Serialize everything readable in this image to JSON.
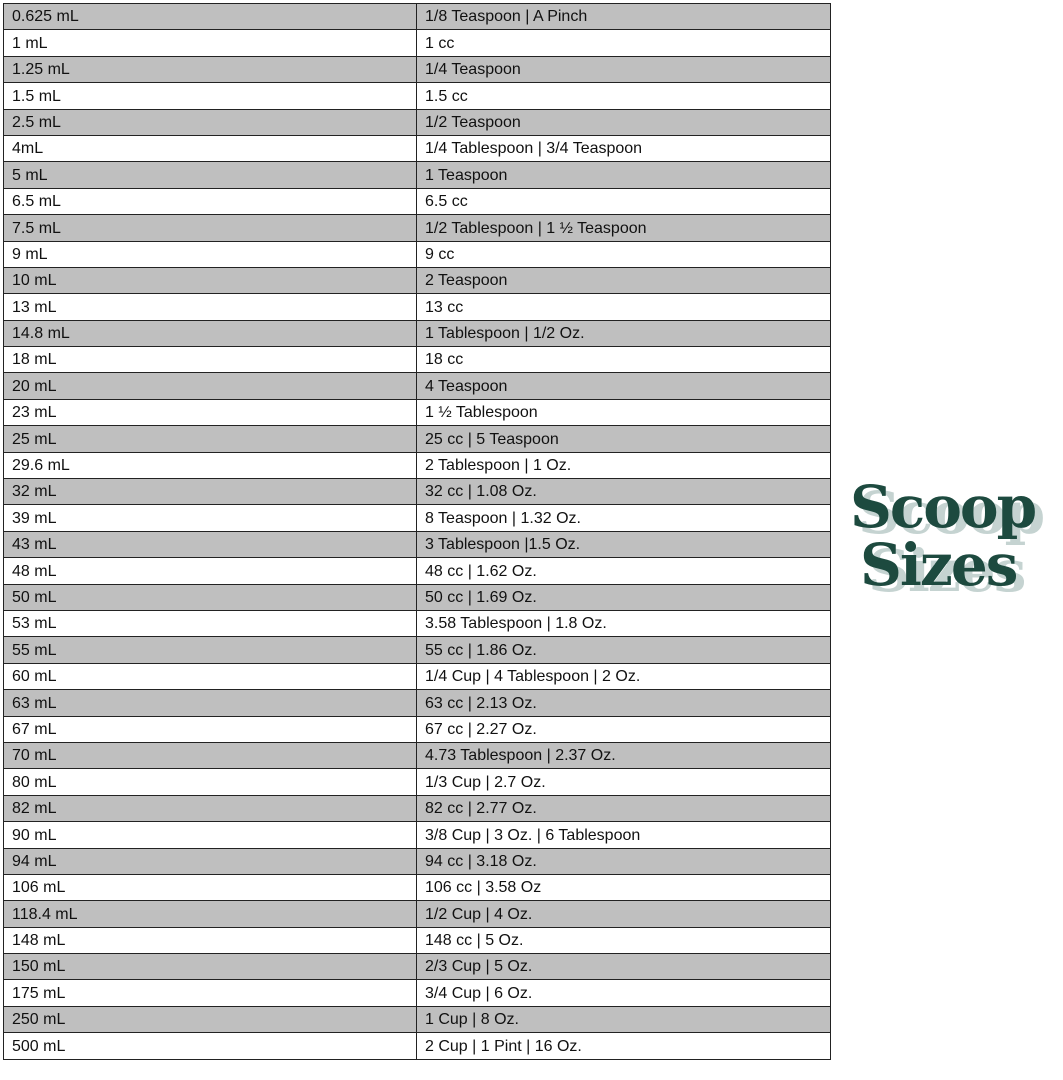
{
  "rows": [
    [
      "0.625 mL",
      "1/8 Teaspoon | A Pinch"
    ],
    [
      "1 mL",
      "1 cc"
    ],
    [
      "1.25 mL",
      "1/4 Teaspoon"
    ],
    [
      "1.5 mL",
      "1.5 cc"
    ],
    [
      "2.5 mL",
      "1/2 Teaspoon"
    ],
    [
      "4mL",
      "1/4 Tablespoon | 3/4 Teaspoon"
    ],
    [
      "5 mL",
      "1 Teaspoon"
    ],
    [
      "6.5 mL",
      "6.5 cc"
    ],
    [
      "7.5 mL",
      "1/2 Tablespoon | 1 ½ Teaspoon"
    ],
    [
      "9 mL",
      "9 cc"
    ],
    [
      "10 mL",
      "2 Teaspoon"
    ],
    [
      "13 mL",
      "13 cc"
    ],
    [
      "14.8 mL",
      "1 Tablespoon | 1/2 Oz."
    ],
    [
      "18 mL",
      "18 cc"
    ],
    [
      "20 mL",
      "4 Teaspoon"
    ],
    [
      "23 mL",
      "1 ½ Tablespoon"
    ],
    [
      "25 mL",
      "25 cc | 5 Teaspoon"
    ],
    [
      "29.6 mL",
      "2 Tablespoon | 1 Oz."
    ],
    [
      "32 mL",
      "32 cc | 1.08 Oz."
    ],
    [
      "39 mL",
      "8 Teaspoon | 1.32 Oz."
    ],
    [
      "43 mL",
      "3 Tablespoon |1.5 Oz."
    ],
    [
      "48 mL",
      "48 cc | 1.62 Oz."
    ],
    [
      "50 mL",
      "50 cc | 1.69 Oz."
    ],
    [
      "53 mL",
      "3.58 Tablespoon | 1.8 Oz."
    ],
    [
      "55 mL",
      "55 cc | 1.86 Oz."
    ],
    [
      "60 mL",
      "1/4 Cup | 4 Tablespoon | 2 Oz."
    ],
    [
      "63 mL",
      "63 cc | 2.13 Oz."
    ],
    [
      "67 mL",
      "67 cc | 2.27 Oz."
    ],
    [
      "70 mL",
      "4.73 Tablespoon | 2.37 Oz."
    ],
    [
      "80 mL",
      "1/3 Cup | 2.7 Oz."
    ],
    [
      "82 mL",
      "82 cc | 2.77 Oz."
    ],
    [
      "90 mL",
      "3/8 Cup | 3 Oz. | 6 Tablespoon"
    ],
    [
      "94 mL",
      "94 cc | 3.18 Oz."
    ],
    [
      "106 mL",
      "106 cc | 3.58 Oz"
    ],
    [
      "118.4 mL",
      "1/2 Cup | 4 Oz."
    ],
    [
      "148 mL",
      "148 cc | 5 Oz."
    ],
    [
      "150 mL",
      "2/3 Cup | 5 Oz."
    ],
    [
      "175 mL",
      "3/4 Cup | 6 Oz."
    ],
    [
      "250 mL",
      "1 Cup | 8 Oz."
    ],
    [
      "500 mL",
      "2 Cup | 1 Pint | 16 Oz."
    ]
  ],
  "logo": {
    "line1": "Scoop",
    "line2": "Sizes",
    "color": "#1d4a3f",
    "shadow_color": "#c5d3d1"
  },
  "colors": {
    "stripe": "#bfbfbf",
    "border": "#222222"
  }
}
